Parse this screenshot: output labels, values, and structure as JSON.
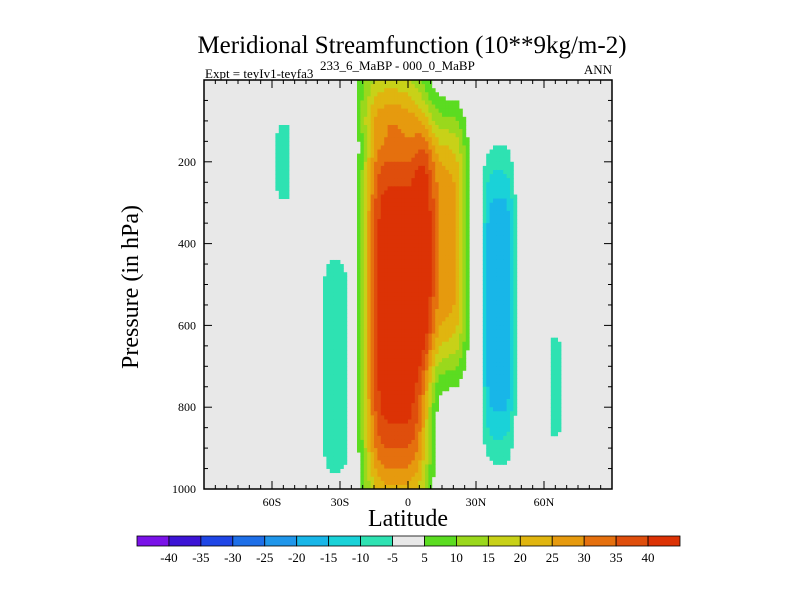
{
  "chart_data": {
    "type": "heatmap",
    "title": "Meridional Streamfunction (10**9kg/m-2)",
    "subtitle_left": "Expt = teyIv1-teyfa3",
    "subtitle_center": "233_6_MaBP - 000_0_MaBP",
    "subtitle_right": "ANN",
    "xlabel": "Latitude",
    "ylabel": "Pressure (in hPa)",
    "xlim": [
      -90,
      90
    ],
    "ylim": [
      1000,
      0
    ],
    "x_ticks": [
      {
        "value": -60,
        "label": "60S"
      },
      {
        "value": -30,
        "label": "30S"
      },
      {
        "value": 0,
        "label": "0"
      },
      {
        "value": 30,
        "label": "30N"
      },
      {
        "value": 60,
        "label": "60N"
      }
    ],
    "y_ticks": [
      {
        "value": 200,
        "label": "200"
      },
      {
        "value": 400,
        "label": "400"
      },
      {
        "value": 600,
        "label": "600"
      },
      {
        "value": 800,
        "label": "800"
      },
      {
        "value": 1000,
        "label": "1000"
      }
    ],
    "contour_levels": [
      -40,
      -35,
      -30,
      -25,
      -20,
      -15,
      -10,
      -5,
      5,
      10,
      15,
      20,
      25,
      30,
      35,
      40
    ],
    "colorbar_colors": [
      "#7a12e8",
      "#3d14d6",
      "#1f46e6",
      "#1e6fe8",
      "#1f96ea",
      "#18b6e8",
      "#1ad2d8",
      "#2ee2b2",
      "#e8e8e8",
      "#5bdc21",
      "#9ad81c",
      "#c8d118",
      "#e0b50f",
      "#e69a0e",
      "#e5700e",
      "#df4e0c",
      "#dc3205"
    ],
    "background_color": "#e8e8e8",
    "data_extremes_note": "strong positive cell ~0-10N peaking >40; negative cell ~35-45N peaking ~-20",
    "field_features": [
      {
        "name": "main-positive-cell",
        "center_lat": -5,
        "center_p": 550,
        "peak": 45
      },
      {
        "name": "subtropical-positive-extension",
        "center_lat": 15,
        "center_p": 400,
        "peak": 28
      },
      {
        "name": "northern-negative-cell",
        "center_lat": 40,
        "center_p": 550,
        "peak": -20
      },
      {
        "name": "southern-weak-negative-cell",
        "center_lat": -32,
        "center_p": 700,
        "peak": -8
      },
      {
        "name": "southern-polar-negative",
        "center_lat": -55,
        "center_p": 200,
        "peak": -6
      },
      {
        "name": "northern-polar-negative",
        "center_lat": 65,
        "center_p": 750,
        "peak": -6
      },
      {
        "name": "upper-positive-band",
        "center_lat": -10,
        "center_p": 50,
        "peak": 7
      }
    ]
  }
}
